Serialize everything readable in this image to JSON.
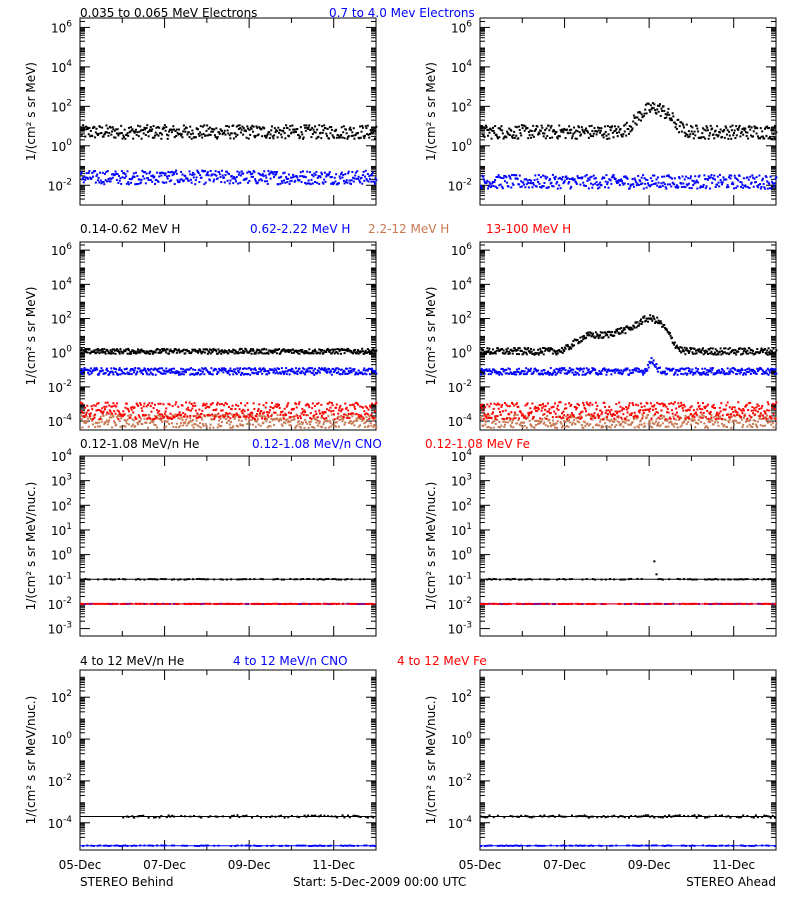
{
  "rows": [
    {
      "legend": [
        {
          "text": "0.035 to 0.065 MeV Electrons",
          "color": "#000000"
        },
        {
          "text": "0.7 to 4.0 Mev Electrons",
          "color": "#0000ff"
        }
      ],
      "ylabel": "1/(cm² s sr MeV)"
    },
    {
      "legend": [
        {
          "text": "0.14-0.62 MeV H",
          "color": "#000000"
        },
        {
          "text": "0.62-2.22 MeV H",
          "color": "#0000ff"
        },
        {
          "text": "2.2-12 MeV H",
          "color": "#c87850"
        },
        {
          "text": "13-100 MeV H",
          "color": "#ff0000"
        }
      ],
      "ylabel": "1/(cm² s sr MeV)"
    },
    {
      "legend": [
        {
          "text": "0.12-1.08 MeV/n He",
          "color": "#000000"
        },
        {
          "text": "0.12-1.08 MeV/n CNO",
          "color": "#0000ff"
        },
        {
          "text": "0.12-1.08 MeV Fe",
          "color": "#ff0000"
        }
      ],
      "ylabel": "1/(cm² s sr MeV/nuc.)"
    },
    {
      "legend": [
        {
          "text": "4 to 12 MeV/n He",
          "color": "#000000"
        },
        {
          "text": "4 to 12 MeV/n CNO",
          "color": "#0000ff"
        },
        {
          "text": "4 to 12 MeV Fe",
          "color": "#ff0000"
        }
      ],
      "ylabel": "1/(cm² s sr MeV/nuc.)"
    }
  ],
  "x_ticks": [
    "05-Dec",
    "07-Dec",
    "09-Dec",
    "11-Dec"
  ],
  "footer": {
    "left": "STEREO Behind",
    "center": "Start:  5-Dec-2009 00:00 UTC",
    "right": "STEREO Ahead"
  },
  "chart_data": [
    {
      "type": "scatter",
      "spacecraft": "STEREO Behind",
      "yscale": "log",
      "ylim": [
        0.001,
        3000000
      ],
      "yticks": [
        {
          "v": 0.01,
          "b": "10",
          "e": "-2"
        },
        {
          "v": 1,
          "b": "10",
          "e": "0"
        },
        {
          "v": 100,
          "b": "10",
          "e": "2"
        },
        {
          "v": 10000,
          "b": "10",
          "e": "4"
        },
        {
          "v": 1000000,
          "b": "10",
          "e": "6"
        }
      ],
      "xlim": [
        0,
        7
      ],
      "series": [
        {
          "name": "0.035 to 0.065 MeV Electrons",
          "color": "#000000",
          "base": 5,
          "spread": 0.35
        },
        {
          "name": "0.7 to 4.0 Mev Electrons",
          "color": "#0000ff",
          "base": 0.025,
          "spread": 0.35
        }
      ]
    },
    {
      "type": "scatter",
      "spacecraft": "STEREO Ahead",
      "yscale": "log",
      "ylim": [
        0.001,
        3000000
      ],
      "yticks": [
        {
          "v": 0.01,
          "b": "10",
          "e": "-2"
        },
        {
          "v": 1,
          "b": "10",
          "e": "0"
        },
        {
          "v": 100,
          "b": "10",
          "e": "2"
        },
        {
          "v": 10000,
          "b": "10",
          "e": "4"
        },
        {
          "v": 1000000,
          "b": "10",
          "e": "6"
        }
      ],
      "xlim": [
        0,
        7
      ],
      "series": [
        {
          "name": "0.035 to 0.065 MeV Electrons",
          "color": "#000000",
          "base": 5,
          "spread": 0.35,
          "peaks": [
            {
              "x": 4.1,
              "amp": 15,
              "w": 0.35
            }
          ]
        },
        {
          "name": "0.7 to 4.0 Mev Electrons",
          "color": "#0000ff",
          "base": 0.015,
          "spread": 0.35
        }
      ]
    },
    {
      "type": "scatter",
      "spacecraft": "STEREO Behind",
      "yscale": "log",
      "ylim": [
        3e-05,
        3000000
      ],
      "yticks": [
        {
          "v": 0.0001,
          "b": "10",
          "e": "-4"
        },
        {
          "v": 0.01,
          "b": "10",
          "e": "-2"
        },
        {
          "v": 1,
          "b": "10",
          "e": "0"
        },
        {
          "v": 100,
          "b": "10",
          "e": "2"
        },
        {
          "v": 10000,
          "b": "10",
          "e": "4"
        },
        {
          "v": 1000000,
          "b": "10",
          "e": "6"
        }
      ],
      "xlim": [
        0,
        7
      ],
      "series": [
        {
          "name": "0.14-0.62 MeV H",
          "color": "#000000",
          "base": 1.2,
          "spread": 0.15
        },
        {
          "name": "0.62-2.22 MeV H",
          "color": "#0000ff",
          "base": 0.08,
          "spread": 0.2
        },
        {
          "name": "2.2-12 MeV H",
          "color": "#c87850",
          "base": 0.0001,
          "spread": 0.4
        },
        {
          "name": "13-100 MeV H",
          "color": "#ff0000",
          "base": 0.0004,
          "spread": 0.5
        }
      ]
    },
    {
      "type": "scatter",
      "spacecraft": "STEREO Ahead",
      "yscale": "log",
      "ylim": [
        3e-05,
        3000000
      ],
      "yticks": [
        {
          "v": 0.0001,
          "b": "10",
          "e": "-4"
        },
        {
          "v": 0.01,
          "b": "10",
          "e": "-2"
        },
        {
          "v": 1,
          "b": "10",
          "e": "0"
        },
        {
          "v": 100,
          "b": "10",
          "e": "2"
        },
        {
          "v": 10000,
          "b": "10",
          "e": "4"
        },
        {
          "v": 1000000,
          "b": "10",
          "e": "6"
        }
      ],
      "xlim": [
        0,
        7
      ],
      "series": [
        {
          "name": "0.14-0.62 MeV H",
          "color": "#000000",
          "base": 1.2,
          "spread": 0.2,
          "peaks": [
            {
              "x": 2.6,
              "amp": 7,
              "w": 0.35
            },
            {
              "x": 3.4,
              "amp": 15,
              "w": 0.45
            },
            {
              "x": 4.0,
              "amp": 80,
              "w": 0.3
            }
          ]
        },
        {
          "name": "0.62-2.22 MeV H",
          "color": "#0000ff",
          "base": 0.08,
          "spread": 0.2,
          "peaks": [
            {
              "x": 4.05,
              "amp": 3,
              "w": 0.1
            }
          ]
        },
        {
          "name": "2.2-12 MeV H",
          "color": "#c87850",
          "base": 0.0001,
          "spread": 0.4
        },
        {
          "name": "13-100 MeV H",
          "color": "#ff0000",
          "base": 0.0004,
          "spread": 0.5
        }
      ]
    },
    {
      "type": "scatter",
      "spacecraft": "STEREO Behind",
      "yscale": "log",
      "ylim": [
        0.0005,
        10000
      ],
      "yticks": [
        {
          "v": 0.001,
          "b": "10",
          "e": "-3"
        },
        {
          "v": 0.01,
          "b": "10",
          "e": "-2"
        },
        {
          "v": 0.1,
          "b": "10",
          "e": "-1"
        },
        {
          "v": 1,
          "b": "10",
          "e": "0"
        },
        {
          "v": 10,
          "b": "10",
          "e": "1"
        },
        {
          "v": 100,
          "b": "10",
          "e": "2"
        },
        {
          "v": 1000,
          "b": "10",
          "e": "3"
        },
        {
          "v": 10000,
          "b": "10",
          "e": "4"
        }
      ],
      "xlim": [
        0,
        7
      ],
      "series": [
        {
          "name": "0.12-1.08 MeV/n He",
          "color": "#000000",
          "base": 0.1,
          "spread": 0.05,
          "sparse": true
        },
        {
          "name": "0.12-1.08 MeV/n CNO",
          "color": "#0000ff",
          "base": 0.01,
          "spread": 0.02,
          "sparse": true
        },
        {
          "name": "0.12-1.08 MeV Fe",
          "color": "#ff0000",
          "base": 0.01,
          "spread": 0.02,
          "sparse": true
        }
      ]
    },
    {
      "type": "scatter",
      "spacecraft": "STEREO Ahead",
      "yscale": "log",
      "ylim": [
        0.0005,
        10000
      ],
      "yticks": [
        {
          "v": 0.001,
          "b": "10",
          "e": "-3"
        },
        {
          "v": 0.01,
          "b": "10",
          "e": "-2"
        },
        {
          "v": 0.1,
          "b": "10",
          "e": "-1"
        },
        {
          "v": 1,
          "b": "10",
          "e": "0"
        },
        {
          "v": 10,
          "b": "10",
          "e": "1"
        },
        {
          "v": 100,
          "b": "10",
          "e": "2"
        },
        {
          "v": 1000,
          "b": "10",
          "e": "3"
        },
        {
          "v": 10000,
          "b": "10",
          "e": "4"
        }
      ],
      "xlim": [
        0,
        7
      ],
      "series": [
        {
          "name": "0.12-1.08 MeV/n He",
          "color": "#000000",
          "base": 0.1,
          "spread": 0.05,
          "sparse": true,
          "peaks": [
            {
              "x": 4.0,
              "amp": 20,
              "w": 0.08
            }
          ]
        },
        {
          "name": "0.12-1.08 MeV/n CNO",
          "color": "#0000ff",
          "base": 0.01,
          "spread": 0.02,
          "sparse": true
        },
        {
          "name": "0.12-1.08 MeV Fe",
          "color": "#ff0000",
          "base": 0.01,
          "spread": 0.02,
          "sparse": true
        }
      ]
    },
    {
      "type": "scatter",
      "spacecraft": "STEREO Behind",
      "yscale": "log",
      "ylim": [
        5e-06,
        2000
      ],
      "yticks": [
        {
          "v": 0.0001,
          "b": "10",
          "e": "-4"
        },
        {
          "v": 0.01,
          "b": "10",
          "e": "-2"
        },
        {
          "v": 1,
          "b": "10",
          "e": "0"
        },
        {
          "v": 100,
          "b": "10",
          "e": "2"
        }
      ],
      "xlim": [
        0,
        7
      ],
      "series": [
        {
          "name": "4 to 12 MeV/n He",
          "color": "#000000",
          "base": 0.0002,
          "spread": 0.2,
          "sparse": true,
          "start": 1.0
        },
        {
          "name": "4 to 12 MeV/n CNO",
          "color": "#0000ff",
          "base": 8e-06,
          "spread": 0.05,
          "sparse": true
        }
      ]
    },
    {
      "type": "scatter",
      "spacecraft": "STEREO Ahead",
      "yscale": "log",
      "ylim": [
        5e-06,
        2000
      ],
      "yticks": [
        {
          "v": 0.0001,
          "b": "10",
          "e": "-4"
        },
        {
          "v": 0.01,
          "b": "10",
          "e": "-2"
        },
        {
          "v": 1,
          "b": "10",
          "e": "0"
        },
        {
          "v": 100,
          "b": "10",
          "e": "2"
        }
      ],
      "xlim": [
        0,
        7
      ],
      "series": [
        {
          "name": "4 to 12 MeV/n He",
          "color": "#000000",
          "base": 0.0002,
          "spread": 0.2,
          "sparse": true
        },
        {
          "name": "4 to 12 MeV/n CNO",
          "color": "#0000ff",
          "base": 8e-06,
          "spread": 0.05,
          "sparse": true
        }
      ]
    }
  ]
}
